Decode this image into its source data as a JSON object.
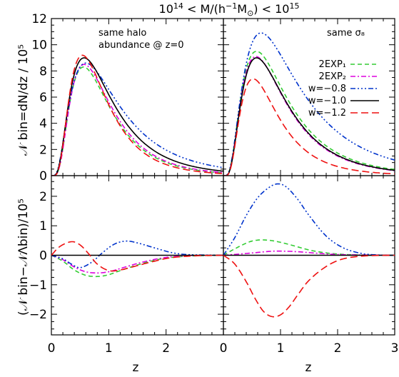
{
  "title_parts": {
    "a": "10",
    "a_sup": "14",
    "b": " < M/(h",
    "b_sup": "−1",
    "c": "M",
    "c_sub": "⊙",
    "d": ") < 10",
    "d_sup": "15"
  },
  "ylabel_top": "𝒩 bin=dN/dz / 10⁵",
  "ylabel_bottom": "(𝒩 bin−𝒩Λbin)/10⁵",
  "xlabel_left": "z",
  "xlabel_right": "z",
  "annotation_left": [
    "same halo",
    "abundance @ z=0"
  ],
  "annotation_right": "same σ₈",
  "colors": {
    "exp1": "#33cc33",
    "exp2": "#dd00dd",
    "w08": "#0033cc",
    "w10": "#000000",
    "w12": "#ee1111"
  },
  "legend": [
    {
      "key": "exp1",
      "label": "2EXP₁"
    },
    {
      "key": "exp2",
      "label": "2EXP₂"
    },
    {
      "key": "w08",
      "label": "w=−0.8"
    },
    {
      "key": "w10",
      "label": "w=−1.0"
    },
    {
      "key": "w12",
      "label": "w=−1.2"
    }
  ],
  "chart_data": [
    {
      "panel": "top-left",
      "type": "line",
      "xlim": [
        0,
        3
      ],
      "ylim": [
        0,
        12
      ],
      "xticks": [
        0,
        1,
        2
      ],
      "yticks": [
        0,
        2,
        4,
        6,
        8,
        10,
        12
      ],
      "series": [
        {
          "key": "exp1",
          "peak_z": 0.56,
          "peak_y": 8.3,
          "k": 0.62
        },
        {
          "key": "exp2",
          "peak_z": 0.57,
          "peak_y": 8.5,
          "k": 0.62
        },
        {
          "key": "w08",
          "peak_z": 0.6,
          "peak_y": 8.6,
          "k": 0.7
        },
        {
          "key": "w10",
          "peak_z": 0.57,
          "peak_y": 9.0,
          "k": 0.65
        },
        {
          "key": "w12",
          "peak_z": 0.54,
          "peak_y": 9.2,
          "k": 0.6
        }
      ]
    },
    {
      "panel": "top-right",
      "type": "line",
      "xlim": [
        0,
        3
      ],
      "ylim": [
        0,
        12
      ],
      "xticks": [
        0,
        1,
        2,
        3
      ],
      "yticks": [
        0,
        2,
        4,
        6,
        8,
        10,
        12
      ],
      "series": [
        {
          "key": "exp1",
          "peak_z": 0.58,
          "peak_y": 9.5,
          "k": 0.67
        },
        {
          "key": "exp2",
          "peak_z": 0.57,
          "peak_y": 9.1,
          "k": 0.66
        },
        {
          "key": "w08",
          "peak_z": 0.66,
          "peak_y": 10.9,
          "k": 0.72
        },
        {
          "key": "w10",
          "peak_z": 0.58,
          "peak_y": 9.0,
          "k": 0.66
        },
        {
          "key": "w12",
          "peak_z": 0.52,
          "peak_y": 7.4,
          "k": 0.62
        }
      ]
    },
    {
      "panel": "bottom-left",
      "type": "line",
      "xlim": [
        0,
        3
      ],
      "ylim": [
        -2.7,
        2.7
      ],
      "xticks": [
        0,
        1,
        2
      ],
      "yticks": [
        -2,
        -1,
        0,
        1,
        2
      ],
      "series": [
        {
          "key": "exp1",
          "points": [
            [
              0,
              0
            ],
            [
              0.2,
              -0.2
            ],
            [
              0.4,
              -0.5
            ],
            [
              0.6,
              -0.68
            ],
            [
              0.8,
              -0.72
            ],
            [
              1.0,
              -0.66
            ],
            [
              1.2,
              -0.52
            ],
            [
              1.5,
              -0.33
            ],
            [
              1.8,
              -0.17
            ],
            [
              2.1,
              -0.07
            ],
            [
              2.5,
              -0.02
            ],
            [
              3,
              0
            ]
          ]
        },
        {
          "key": "exp2",
          "points": [
            [
              0,
              0
            ],
            [
              0.2,
              -0.15
            ],
            [
              0.4,
              -0.4
            ],
            [
              0.6,
              -0.56
            ],
            [
              0.8,
              -0.6
            ],
            [
              1.0,
              -0.56
            ],
            [
              1.2,
              -0.45
            ],
            [
              1.5,
              -0.28
            ],
            [
              1.8,
              -0.14
            ],
            [
              2.1,
              -0.05
            ],
            [
              2.5,
              -0.01
            ],
            [
              3,
              0
            ]
          ]
        },
        {
          "key": "w08",
          "points": [
            [
              0,
              0
            ],
            [
              0.2,
              -0.12
            ],
            [
              0.35,
              -0.3
            ],
            [
              0.5,
              -0.42
            ],
            [
              0.7,
              -0.24
            ],
            [
              0.9,
              0.1
            ],
            [
              1.1,
              0.38
            ],
            [
              1.3,
              0.48
            ],
            [
              1.5,
              0.42
            ],
            [
              1.8,
              0.25
            ],
            [
              2.1,
              0.09
            ],
            [
              2.4,
              0.02
            ],
            [
              3,
              0
            ]
          ]
        },
        {
          "key": "w10",
          "points": [
            [
              0,
              0
            ],
            [
              3,
              0
            ]
          ]
        },
        {
          "key": "w12",
          "points": [
            [
              0,
              0
            ],
            [
              0.15,
              0.3
            ],
            [
              0.35,
              0.46
            ],
            [
              0.5,
              0.35
            ],
            [
              0.65,
              0.05
            ],
            [
              0.8,
              -0.3
            ],
            [
              1.0,
              -0.52
            ],
            [
              1.2,
              -0.5
            ],
            [
              1.5,
              -0.35
            ],
            [
              1.8,
              -0.2
            ],
            [
              2.1,
              -0.08
            ],
            [
              2.5,
              -0.02
            ],
            [
              3,
              0
            ]
          ]
        }
      ]
    },
    {
      "panel": "bottom-right",
      "type": "line",
      "xlim": [
        0,
        3
      ],
      "ylim": [
        -2.7,
        2.7
      ],
      "xticks": [
        0,
        1,
        2,
        3
      ],
      "yticks": [
        -2,
        -1,
        0,
        1,
        2
      ],
      "series": [
        {
          "key": "exp1",
          "points": [
            [
              0,
              0
            ],
            [
              0.2,
              0.22
            ],
            [
              0.45,
              0.45
            ],
            [
              0.65,
              0.52
            ],
            [
              0.9,
              0.48
            ],
            [
              1.2,
              0.34
            ],
            [
              1.5,
              0.18
            ],
            [
              1.8,
              0.08
            ],
            [
              2.1,
              0.03
            ],
            [
              2.5,
              0.0
            ],
            [
              3,
              0
            ]
          ]
        },
        {
          "key": "exp2",
          "points": [
            [
              0,
              0
            ],
            [
              0.4,
              0.06
            ],
            [
              0.8,
              0.13
            ],
            [
              1.0,
              0.14
            ],
            [
              1.3,
              0.12
            ],
            [
              1.7,
              0.06
            ],
            [
              2.1,
              0.02
            ],
            [
              3,
              0
            ]
          ]
        },
        {
          "key": "w08",
          "points": [
            [
              0,
              0
            ],
            [
              0.2,
              0.6
            ],
            [
              0.4,
              1.35
            ],
            [
              0.6,
              1.95
            ],
            [
              0.8,
              2.3
            ],
            [
              0.95,
              2.42
            ],
            [
              1.1,
              2.32
            ],
            [
              1.3,
              1.9
            ],
            [
              1.5,
              1.35
            ],
            [
              1.8,
              0.65
            ],
            [
              2.1,
              0.25
            ],
            [
              2.4,
              0.07
            ],
            [
              2.7,
              0.01
            ],
            [
              3,
              0
            ]
          ]
        },
        {
          "key": "w10",
          "points": [
            [
              0,
              0
            ],
            [
              3,
              0
            ]
          ]
        },
        {
          "key": "w12",
          "points": [
            [
              0,
              0
            ],
            [
              0.2,
              -0.3
            ],
            [
              0.4,
              -0.9
            ],
            [
              0.55,
              -1.45
            ],
            [
              0.7,
              -1.9
            ],
            [
              0.85,
              -2.08
            ],
            [
              1.0,
              -2.02
            ],
            [
              1.15,
              -1.75
            ],
            [
              1.3,
              -1.35
            ],
            [
              1.5,
              -0.85
            ],
            [
              1.8,
              -0.38
            ],
            [
              2.1,
              -0.12
            ],
            [
              2.5,
              -0.02
            ],
            [
              3,
              0
            ]
          ]
        }
      ]
    }
  ]
}
